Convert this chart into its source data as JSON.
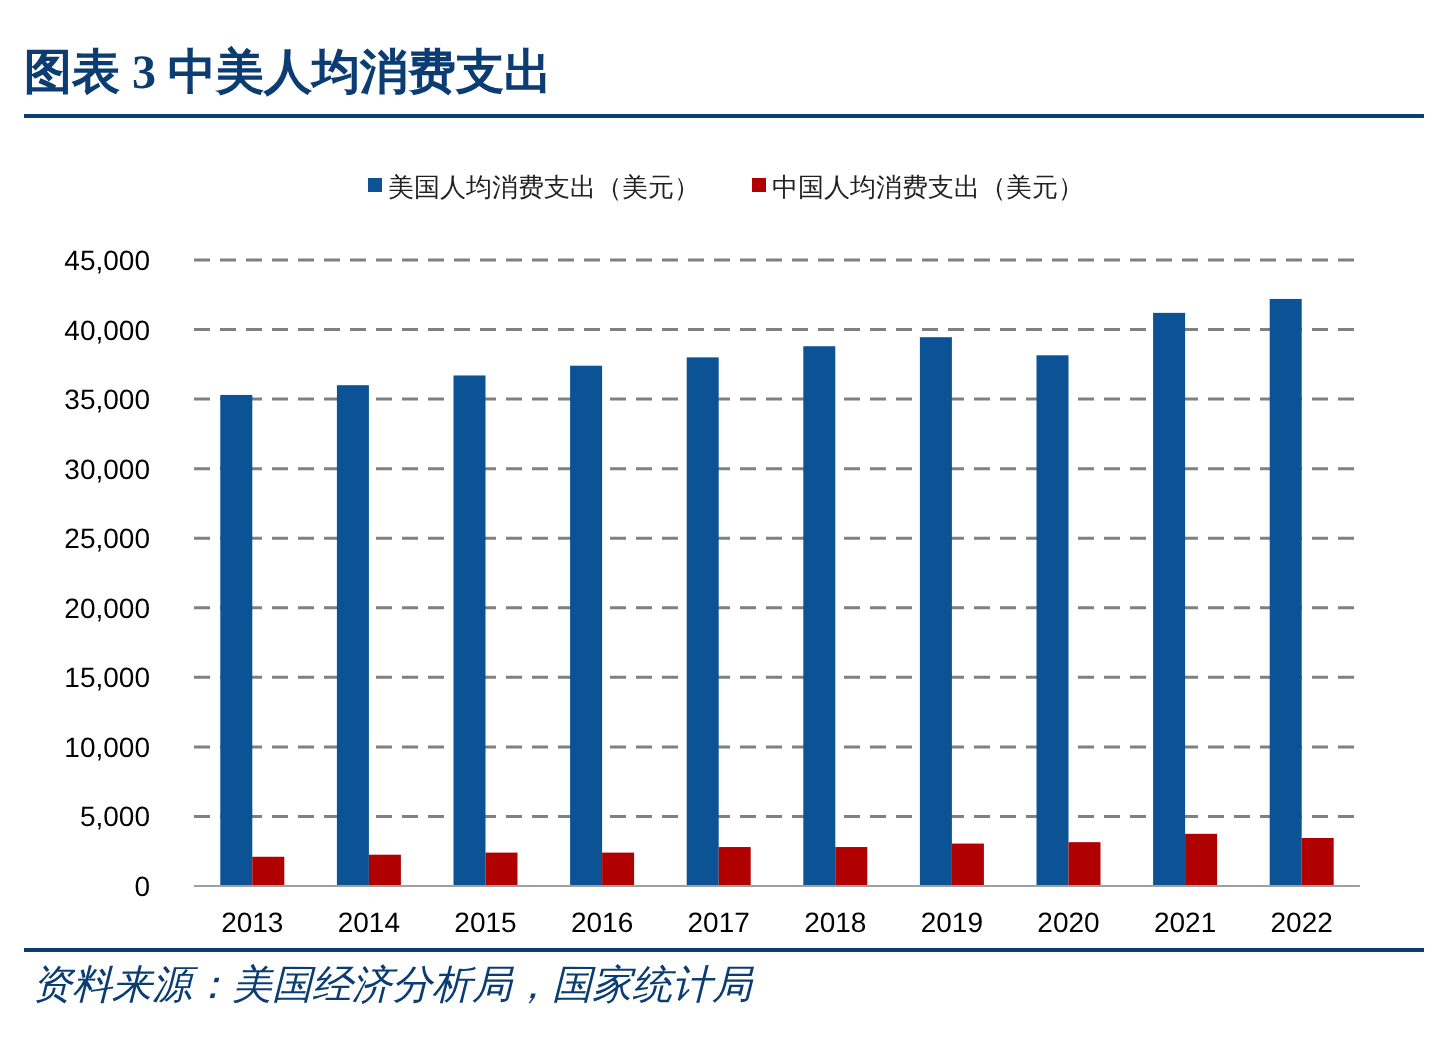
{
  "chart_data": {
    "type": "bar",
    "title": "图表 3  中美人均消费支出",
    "categories": [
      "2013",
      "2014",
      "2015",
      "2016",
      "2017",
      "2018",
      "2019",
      "2020",
      "2021",
      "2022"
    ],
    "series": [
      {
        "name": "美国人均消费支出（美元）",
        "color": "#0b5394",
        "values": [
          35300,
          36000,
          36700,
          37400,
          38000,
          38800,
          39450,
          38150,
          41200,
          42200
        ]
      },
      {
        "name": "中国人均消费支出（美元）",
        "color": "#b00000",
        "values": [
          2100,
          2250,
          2400,
          2400,
          2800,
          2800,
          3050,
          3150,
          3750,
          3450
        ]
      }
    ],
    "ylim": [
      0,
      45000
    ],
    "yticks": [
      {
        "value": 0,
        "label": "0"
      },
      {
        "value": 5000,
        "label": "5,000"
      },
      {
        "value": 10000,
        "label": "10,000"
      },
      {
        "value": 15000,
        "label": "15,000"
      },
      {
        "value": 20000,
        "label": "20,000"
      },
      {
        "value": 25000,
        "label": "25,000"
      },
      {
        "value": 30000,
        "label": "30,000"
      },
      {
        "value": 35000,
        "label": "35,000"
      },
      {
        "value": 40000,
        "label": "40,000"
      },
      {
        "value": 45000,
        "label": "45,000"
      }
    ],
    "grid": "y",
    "legend": "top",
    "annotations": [
      "资料来源：美国经济分析局，国家统计局"
    ]
  }
}
